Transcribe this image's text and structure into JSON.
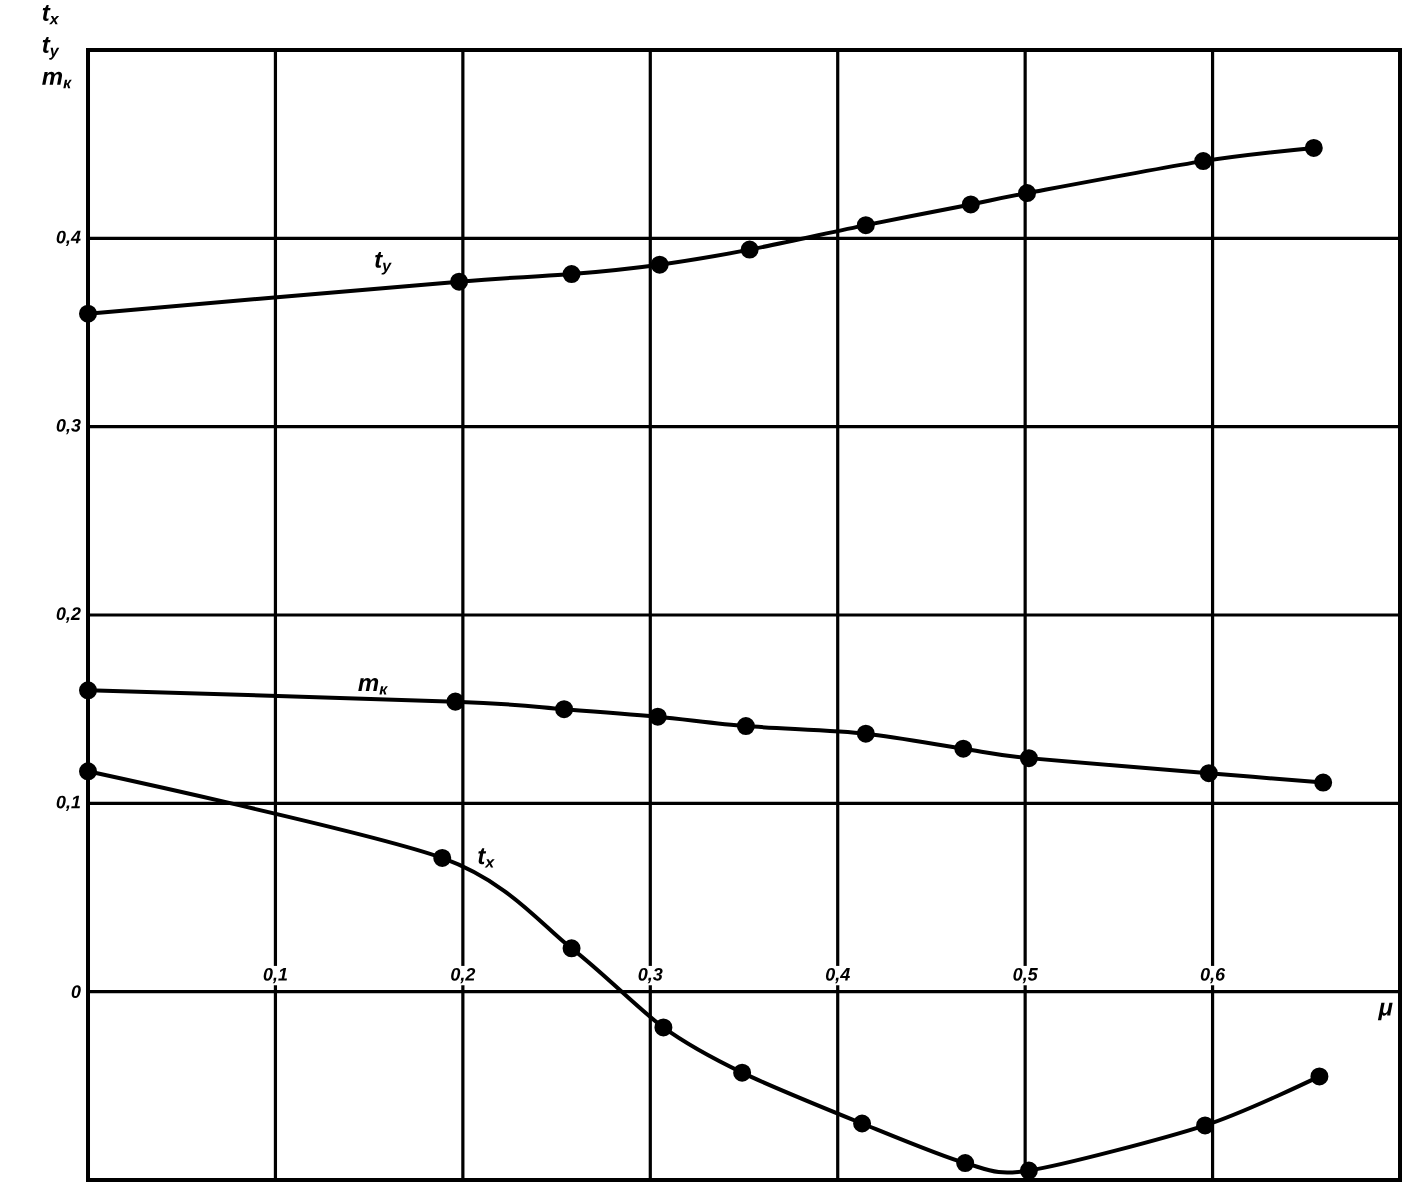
{
  "chart_data": {
    "type": "line",
    "ylabel": "t$_{x}$ t$_{y}$ m$_{к}$",
    "xlabel": "μ",
    "xlim": [
      0,
      0.7
    ],
    "ylim": [
      -0.1,
      0.5
    ],
    "xticks": [
      {
        "value": 0.1,
        "label": "0,1"
      },
      {
        "value": 0.2,
        "label": "0,2"
      },
      {
        "value": 0.3,
        "label": "0,3"
      },
      {
        "value": 0.4,
        "label": "0,4"
      },
      {
        "value": 0.5,
        "label": "0,5"
      },
      {
        "value": 0.6,
        "label": "0,6"
      }
    ],
    "yticks": [
      {
        "value": 0,
        "label": "0"
      },
      {
        "value": 0.1,
        "label": "0,1"
      },
      {
        "value": 0.2,
        "label": "0,2"
      },
      {
        "value": 0.3,
        "label": "0,3"
      },
      {
        "value": 0.4,
        "label": "0,4"
      }
    ],
    "grid": true,
    "marker": "circle",
    "line_style": "solid",
    "legend": false,
    "series": [
      {
        "name": "t$_{y}$",
        "color": "#000000",
        "x": [
          0,
          0.198,
          0.258,
          0.305,
          0.353,
          0.415,
          0.471,
          0.501,
          0.595,
          0.654
        ],
        "values": [
          0.36,
          0.377,
          0.381,
          0.386,
          0.394,
          0.407,
          0.418,
          0.424,
          0.441,
          0.448
        ]
      },
      {
        "name": "m$_{к}$",
        "color": "#000000",
        "x": [
          0,
          0.196,
          0.254,
          0.304,
          0.351,
          0.415,
          0.467,
          0.502,
          0.598,
          0.659
        ],
        "values": [
          0.16,
          0.154,
          0.15,
          0.146,
          0.141,
          0.137,
          0.129,
          0.124,
          0.116,
          0.111
        ]
      },
      {
        "name": "t$_{x}$",
        "color": "#000000",
        "x": [
          0,
          0.189,
          0.258,
          0.307,
          0.349,
          0.413,
          0.468,
          0.502,
          0.596,
          0.657
        ],
        "values": [
          0.117,
          0.071,
          0.023,
          -0.019,
          -0.043,
          -0.07,
          -0.091,
          -0.095,
          -0.071,
          -0.045
        ]
      }
    ]
  }
}
